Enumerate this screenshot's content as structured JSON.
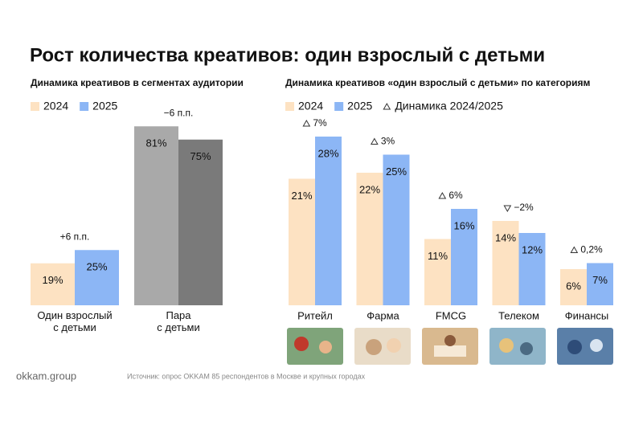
{
  "title": "Рост количества креативов: один взрослый с детьми",
  "chart_data": [
    {
      "type": "bar",
      "subtitle": "Динамика креативов  в сегментах аудитории",
      "categories": [
        "Один взрослый\nс детьми",
        "Пара\nс детьми"
      ],
      "series": [
        {
          "name": "2024",
          "color": "#fde2c2",
          "colors": [
            "#fde2c2",
            "#a9a9a9"
          ],
          "values": [
            19,
            81
          ],
          "value_labels": [
            "19%",
            "81%"
          ]
        },
        {
          "name": "2025",
          "color": "#8cb6f5",
          "colors": [
            "#8cb6f5",
            "#7a7a7a"
          ],
          "values": [
            25,
            75
          ],
          "value_labels": [
            "25%",
            "75%"
          ]
        }
      ],
      "changes": [
        {
          "value": 6,
          "label": "+6 п.п."
        },
        {
          "value": -6,
          "label": "−6 п.п."
        }
      ]
    },
    {
      "type": "bar",
      "subtitle": "Динамика креативов «один взрослый с детьми» по категориям",
      "categories": [
        "Ритейл",
        "Фарма",
        "FMCG",
        "Телеком",
        "Финансы"
      ],
      "series": [
        {
          "name": "2024",
          "color": "#fde2c2",
          "values": [
            21,
            22,
            11,
            14,
            6
          ],
          "value_labels": [
            "21%",
            "22%",
            "11%",
            "14%",
            "6%"
          ]
        },
        {
          "name": "2025",
          "color": "#8cb6f5",
          "values": [
            28,
            25,
            16,
            12,
            7
          ],
          "value_labels": [
            "28%",
            "25%",
            "16%",
            "12%",
            "7%"
          ]
        }
      ],
      "change_name": "Динамика 2024/2025",
      "changes": [
        {
          "value": 7,
          "label": "7%"
        },
        {
          "value": 3,
          "label": "3%"
        },
        {
          "value": 6,
          "label": "6%"
        },
        {
          "value": -2,
          "label": "−2%"
        },
        {
          "value": 0.2,
          "label": "0,2%"
        }
      ]
    }
  ],
  "footer": {
    "brand": "okkam.group",
    "source": "Источник: опрос OKKAM 85 респондентов в Москве и крупных городах"
  }
}
